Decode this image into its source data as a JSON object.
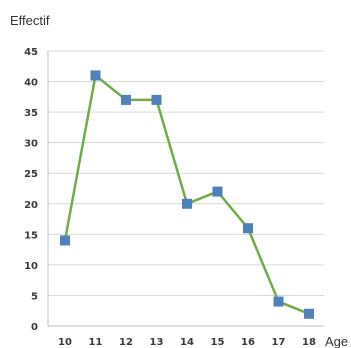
{
  "chart_data": {
    "type": "line",
    "ylabel": "Effectif",
    "xlabel": "Age",
    "x": [
      10,
      11,
      12,
      13,
      14,
      15,
      16,
      17,
      18
    ],
    "categories": [
      "10",
      "11",
      "12",
      "13",
      "14",
      "15",
      "16",
      "17",
      "18"
    ],
    "series": [
      {
        "values": [
          14,
          41,
          37,
          37,
          20,
          22,
          16,
          4,
          2
        ]
      }
    ],
    "ylim": [
      0,
      45
    ],
    "yticks": [
      0,
      5,
      10,
      15,
      20,
      25,
      30,
      35,
      40,
      45
    ],
    "grid": true,
    "legend": "none",
    "colors": {
      "line": "#70ad47",
      "marker": "#4f81bd"
    }
  }
}
